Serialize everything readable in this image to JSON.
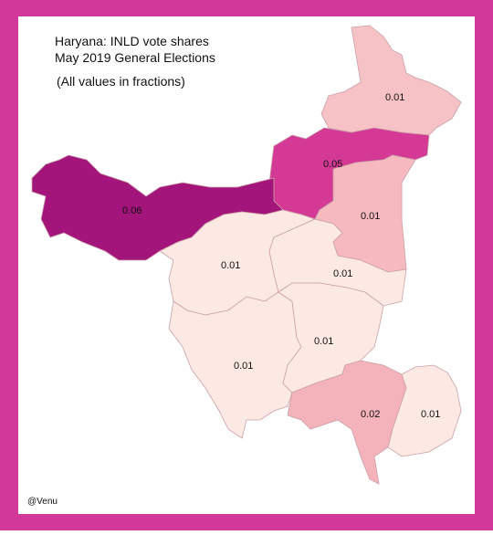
{
  "title": "Haryana: INLD vote shares",
  "subtitle": "May 2019 General Elections",
  "note": "(All values in fractions)",
  "credit": "@Venu",
  "regions": [
    {
      "value": 0.01,
      "color": "#f6c2c6"
    },
    {
      "value": 0.05,
      "color": "#d43a95"
    },
    {
      "value": 0.06,
      "color": "#a3157b"
    },
    {
      "value": 0.01,
      "color": "#f5b9bf"
    },
    {
      "value": 0.01,
      "color": "#fde9e3"
    },
    {
      "value": 0.01,
      "color": "#fde9e3"
    },
    {
      "value": 0.01,
      "color": "#fde9e3"
    },
    {
      "value": 0.01,
      "color": "#fde9e3"
    },
    {
      "value": 0.02,
      "color": "#f4b2bb"
    },
    {
      "value": 0.01,
      "color": "#fde9e3"
    }
  ]
}
